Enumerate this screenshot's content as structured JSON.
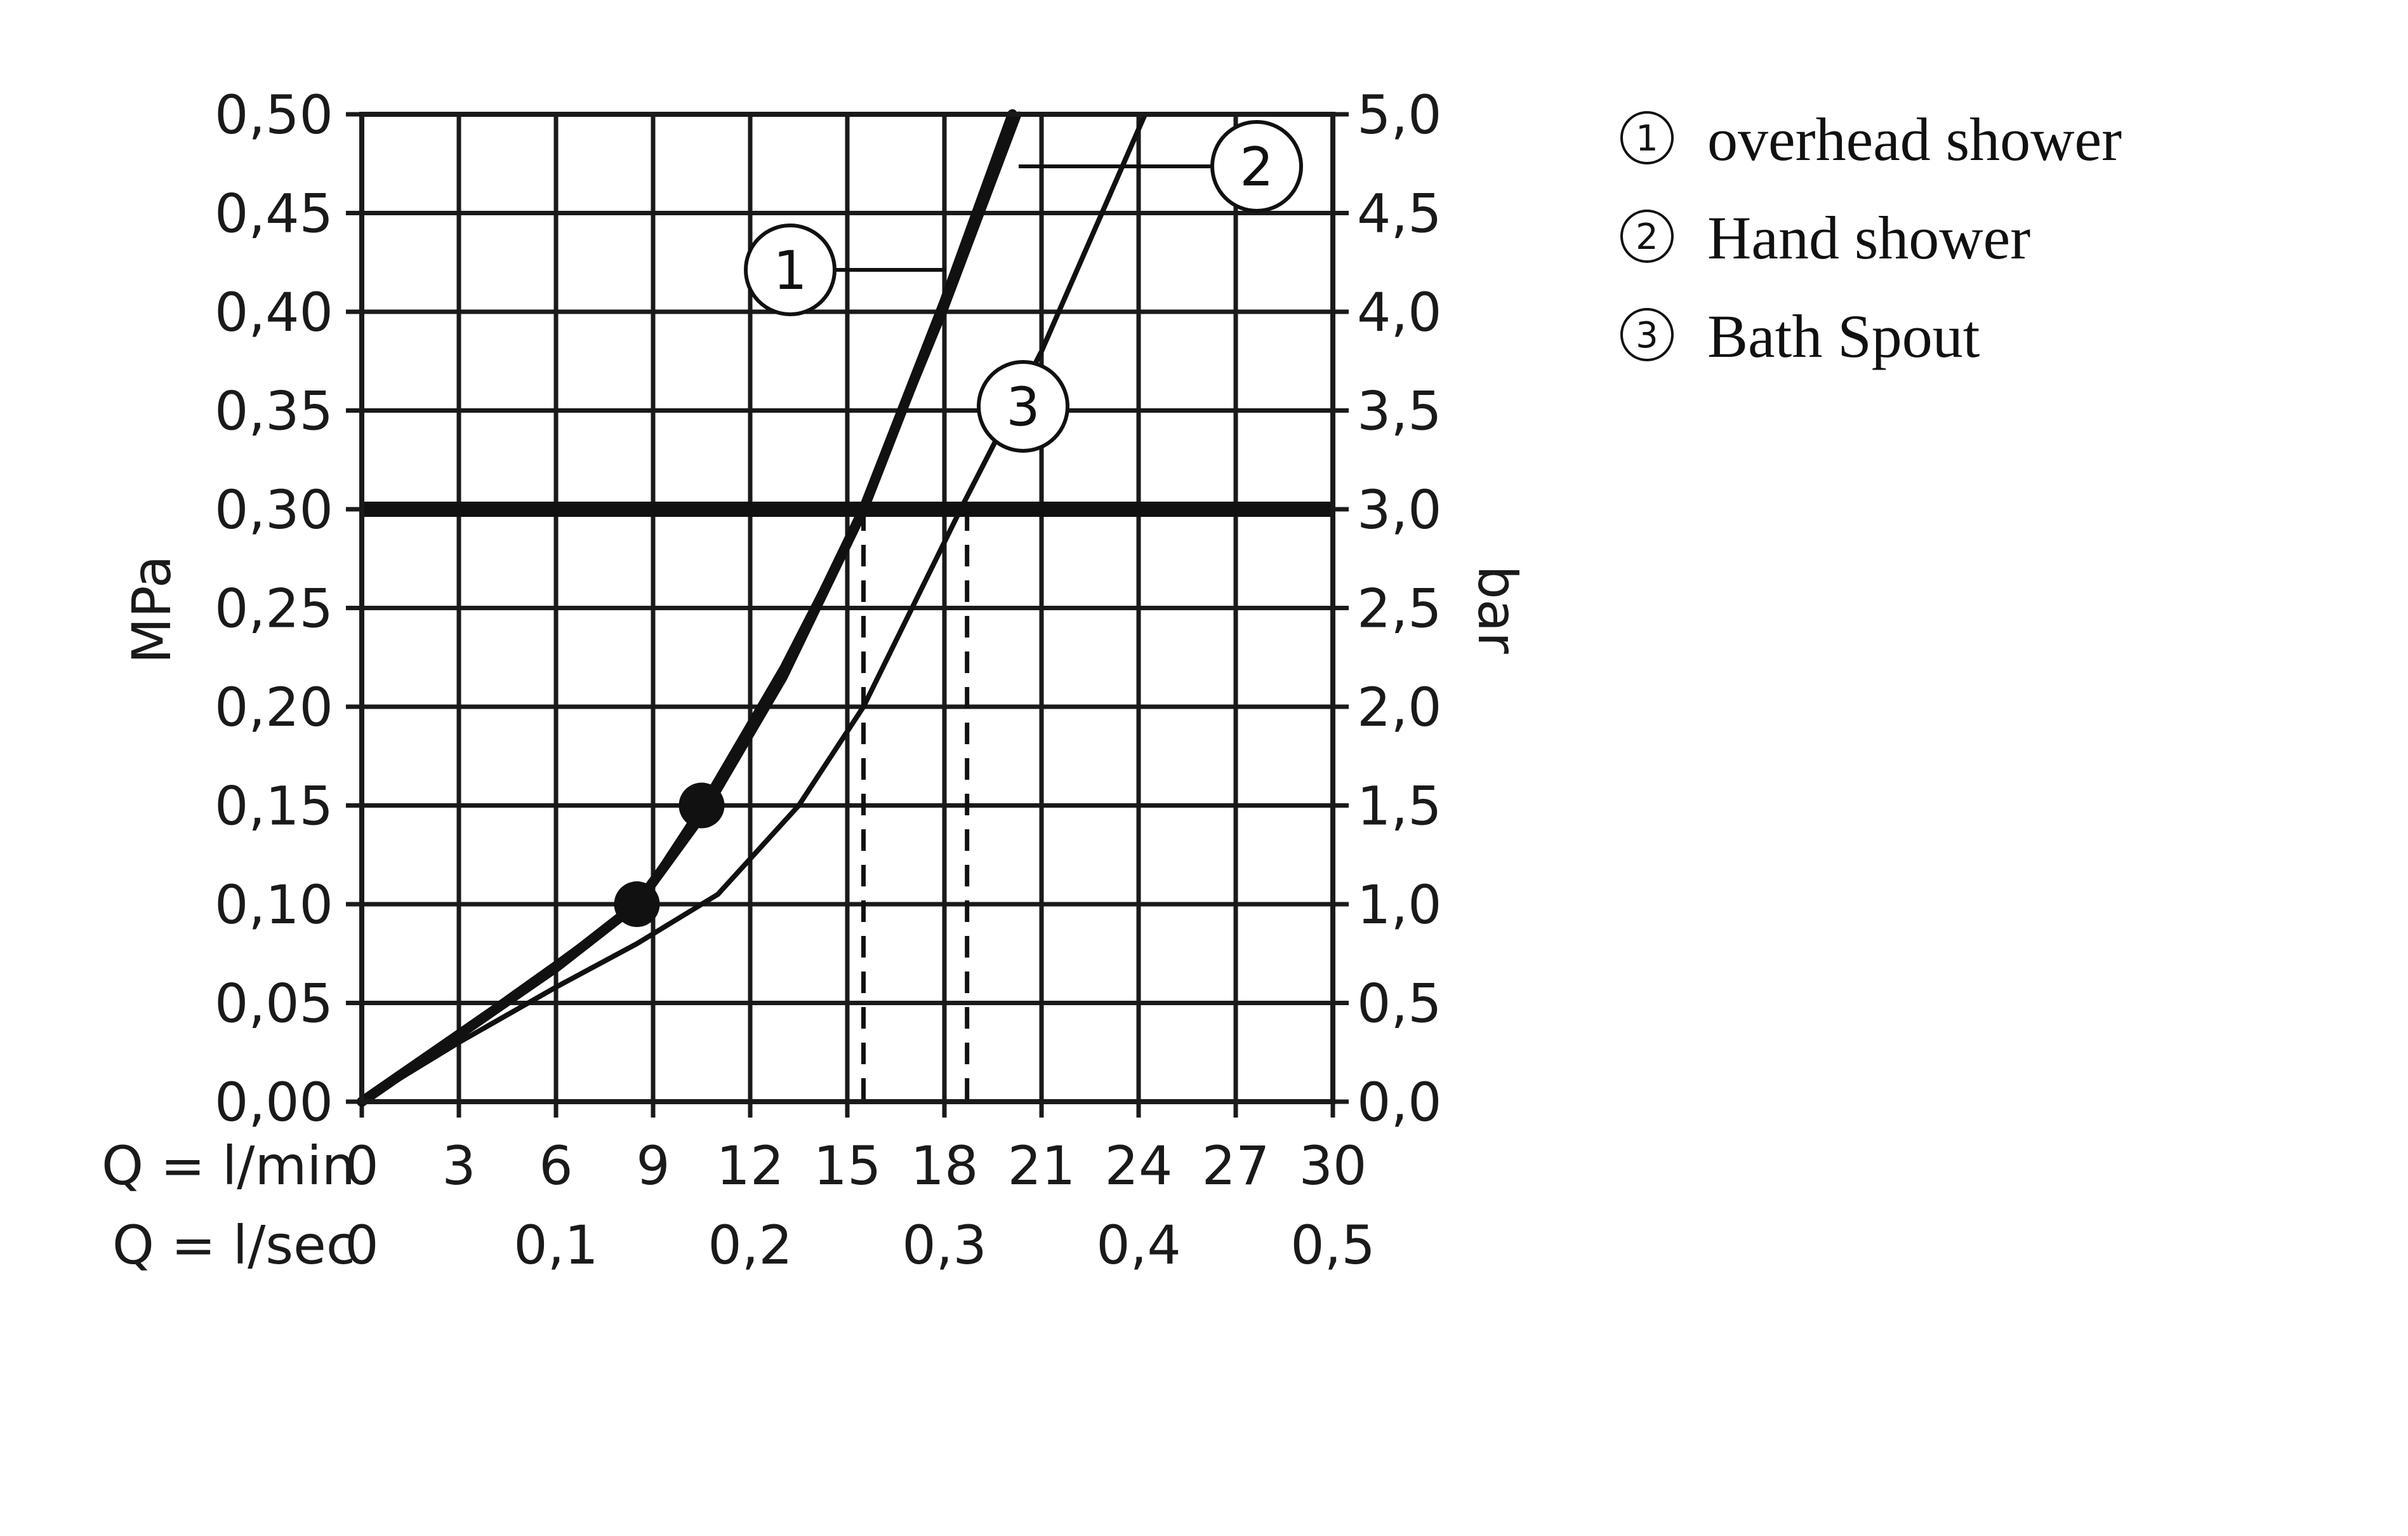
{
  "chart_data": {
    "type": "line",
    "x_label": "Q = l/min",
    "x2_label": "Q = l/sec",
    "y_label": "MPa",
    "y2_label": "bar",
    "xlim": [
      0,
      30
    ],
    "ylim": [
      0,
      0.5
    ],
    "y2lim": [
      0,
      5.0
    ],
    "x_ticks": [
      "0",
      "3",
      "6",
      "9",
      "12",
      "15",
      "18",
      "21",
      "24",
      "27",
      "30"
    ],
    "x2_ticks": [
      {
        "value": 0,
        "label": "0"
      },
      {
        "value": 6,
        "label": "0,1"
      },
      {
        "value": 12,
        "label": "0,2"
      },
      {
        "value": 18,
        "label": "0,3"
      },
      {
        "value": 24,
        "label": "0,4"
      },
      {
        "value": 30,
        "label": "0,5"
      }
    ],
    "y_ticks": [
      "0,00",
      "0,05",
      "0,10",
      "0,15",
      "0,20",
      "0,25",
      "0,30",
      "0,35",
      "0,40",
      "0,45",
      "0,50"
    ],
    "y2_ticks": [
      "0,0",
      "0,5",
      "1,0",
      "1,5",
      "2,0",
      "2,5",
      "3,0",
      "3,5",
      "4,0",
      "4,5",
      "5,0"
    ],
    "grid": true,
    "reference_line": {
      "y": 0.3
    },
    "series": [
      {
        "marker": "1",
        "name": "overhead shower",
        "x": [
          0,
          3,
          6,
          8.5,
          10.5,
          13,
          15.5,
          18,
          20.3
        ],
        "y": [
          0,
          0.035,
          0.07,
          0.1,
          0.15,
          0.22,
          0.3,
          0.4,
          0.5
        ],
        "dot": {
          "x": 10.5,
          "y": 0.15
        }
      },
      {
        "marker": "2",
        "name": "Hand shower",
        "x": [
          0,
          3,
          6,
          8.5,
          10.5,
          13,
          15.5,
          18,
          20.1
        ],
        "y": [
          0,
          0.034,
          0.068,
          0.1,
          0.145,
          0.215,
          0.3,
          0.405,
          0.5
        ],
        "dot": {
          "x": 8.5,
          "y": 0.1
        }
      },
      {
        "marker": "3",
        "name": "Bath Spout",
        "x": [
          0,
          3,
          6,
          8.5,
          11,
          13.5,
          15.5,
          18.5,
          21,
          24.2
        ],
        "y": [
          0,
          0.03,
          0.058,
          0.08,
          0.105,
          0.15,
          0.2,
          0.3,
          0.38,
          0.5
        ]
      }
    ],
    "drop_lines": [
      {
        "x": 15.5,
        "y": 0.3
      },
      {
        "x": 18.7,
        "y": 0.3
      }
    ]
  },
  "legend": [
    {
      "num": "1",
      "label": "overhead shower"
    },
    {
      "num": "2",
      "label": "Hand shower"
    },
    {
      "num": "3",
      "label": "Bath Spout"
    }
  ]
}
